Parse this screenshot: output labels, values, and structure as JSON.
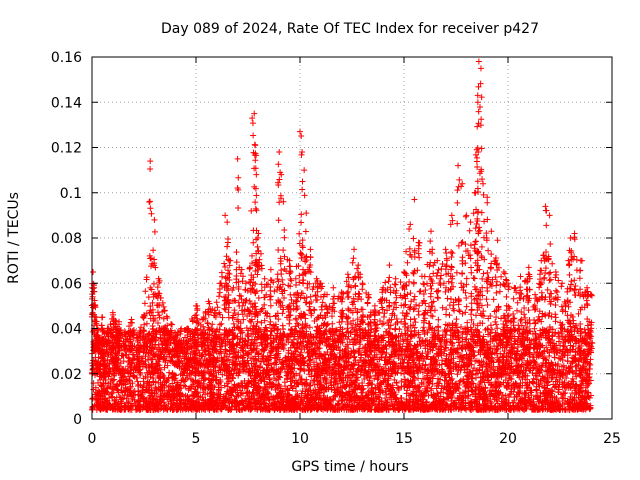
{
  "chart_data": {
    "type": "scatter",
    "title": "Day 089 of 2024, Rate Of TEC Index for receiver p427",
    "xlabel": "GPS time / hours",
    "ylabel": "ROTI / TECUs",
    "xlim": [
      0,
      25
    ],
    "ylim": [
      0,
      0.16
    ],
    "xticks": [
      0,
      5,
      10,
      15,
      20,
      25
    ],
    "xtick_labels": [
      "0",
      "5",
      "10",
      "15",
      "20",
      "25"
    ],
    "yticks": [
      0,
      0.02,
      0.04,
      0.06,
      0.08,
      0.1,
      0.12,
      0.14,
      0.16
    ],
    "ytick_labels": [
      "0",
      "0.02",
      "0.04",
      "0.06",
      "0.08",
      "0.1",
      "0.12",
      "0.14",
      "0.16"
    ],
    "grid": true,
    "marker": "+",
    "color": "#ff0000",
    "series": [
      {
        "name": "ROTI",
        "x": [
          0.05,
          0.1,
          0.15,
          0.2,
          0.25,
          0.3,
          0.5,
          0.8,
          1.0,
          1.3,
          1.6,
          1.9,
          2.2,
          2.5,
          2.8,
          3.0,
          3.2,
          3.5,
          3.8,
          4.0,
          4.3,
          4.6,
          5.0,
          5.3,
          5.6,
          5.9,
          6.2,
          6.4,
          6.5,
          6.6,
          6.8,
          7.0,
          7.2,
          7.4,
          7.6,
          7.7,
          7.8,
          7.85,
          7.9,
          8.0,
          8.3,
          8.6,
          8.9,
          9.0,
          9.1,
          9.2,
          9.5,
          9.8,
          10.0,
          10.1,
          10.2,
          10.3,
          10.5,
          10.8,
          11.0,
          11.3,
          11.6,
          12.0,
          12.3,
          12.6,
          12.8,
          13.0,
          13.3,
          13.6,
          14.0,
          14.3,
          14.6,
          15.0,
          15.1,
          15.3,
          15.5,
          15.7,
          16.0,
          16.3,
          16.6,
          17.0,
          17.3,
          17.6,
          17.8,
          18.0,
          18.2,
          18.4,
          18.5,
          18.55,
          18.6,
          18.7,
          18.8,
          19.0,
          19.2,
          19.5,
          19.8,
          20.0,
          20.3,
          20.6,
          21.0,
          21.3,
          21.6,
          21.8,
          22.0,
          22.3,
          22.6,
          22.9,
          23.0,
          23.2,
          23.5,
          23.8,
          24.0
        ],
        "y": [
          0.065,
          0.058,
          0.05,
          0.045,
          0.04,
          0.035,
          0.045,
          0.04,
          0.047,
          0.043,
          0.038,
          0.044,
          0.036,
          0.046,
          0.114,
          0.088,
          0.062,
          0.048,
          0.042,
          0.038,
          0.033,
          0.04,
          0.05,
          0.044,
          0.052,
          0.048,
          0.06,
          0.09,
          0.087,
          0.07,
          0.058,
          0.115,
          0.066,
          0.06,
          0.067,
          0.133,
          0.135,
          0.121,
          0.108,
          0.082,
          0.062,
          0.066,
          0.057,
          0.118,
          0.108,
          0.096,
          0.07,
          0.062,
          0.127,
          0.118,
          0.11,
          0.091,
          0.075,
          0.062,
          0.06,
          0.055,
          0.058,
          0.056,
          0.064,
          0.075,
          0.068,
          0.06,
          0.055,
          0.05,
          0.058,
          0.068,
          0.062,
          0.065,
          0.074,
          0.086,
          0.097,
          0.078,
          0.063,
          0.083,
          0.07,
          0.075,
          0.09,
          0.112,
          0.104,
          0.09,
          0.087,
          0.1,
          0.119,
          0.14,
          0.158,
          0.155,
          0.104,
          0.098,
          0.083,
          0.079,
          0.065,
          0.06,
          0.058,
          0.063,
          0.067,
          0.055,
          0.07,
          0.094,
          0.09,
          0.065,
          0.06,
          0.07,
          0.08,
          0.082,
          0.07,
          0.058,
          0.055
        ],
        "baseline_min": 0.004,
        "baseline_max": 0.04
      }
    ]
  }
}
